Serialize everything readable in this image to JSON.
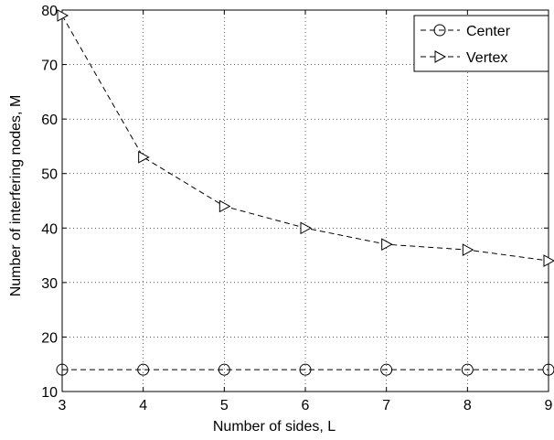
{
  "chart_data": {
    "type": "line",
    "title": "",
    "xlabel": "Number of sides, L",
    "ylabel": "Number of interfering nodes, M",
    "x": [
      3,
      4,
      5,
      6,
      7,
      8,
      9
    ],
    "xlim": [
      3,
      9
    ],
    "ylim": [
      10,
      80
    ],
    "xticks": [
      "3",
      "4",
      "5",
      "6",
      "7",
      "8",
      "9"
    ],
    "yticks": [
      "10",
      "20",
      "30",
      "40",
      "50",
      "60",
      "70",
      "80"
    ],
    "grid": true,
    "legend_position": "top-right",
    "series": [
      {
        "name": "Center",
        "marker": "circle",
        "line_style": "dashed",
        "color": "#000000",
        "values": [
          14,
          14,
          14,
          14,
          14,
          14,
          14
        ]
      },
      {
        "name": "Vertex",
        "marker": "triangle-right",
        "line_style": "dashed",
        "color": "#000000",
        "values": [
          79,
          53,
          44,
          40,
          37,
          36,
          34
        ]
      }
    ]
  }
}
